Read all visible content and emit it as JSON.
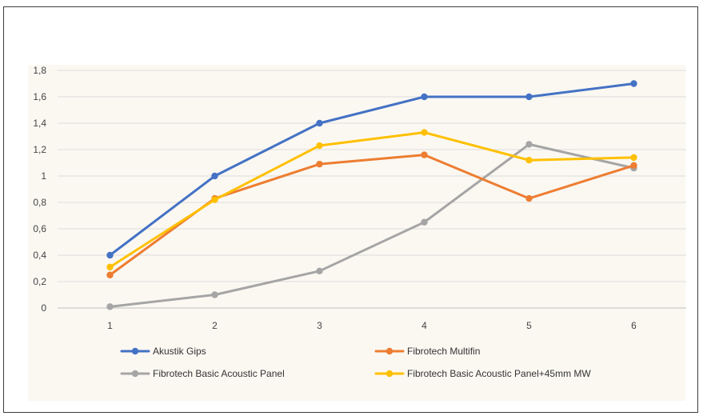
{
  "chart_data": {
    "type": "line",
    "title": "",
    "xlabel": "",
    "ylabel": "",
    "x": [
      1,
      2,
      3,
      4,
      5,
      6
    ],
    "x_tick_labels": [
      "1",
      "2",
      "3",
      "4",
      "5",
      "6"
    ],
    "ylim": [
      0,
      1.8
    ],
    "y_ticks": [
      0,
      0.2,
      0.4,
      0.6,
      0.8,
      1,
      1.2,
      1.4,
      1.6,
      1.8
    ],
    "y_tick_labels": [
      "0",
      "0,2",
      "0,4",
      "0,6",
      "0,8",
      "1",
      "1,2",
      "1,4",
      "1,6",
      "1,8"
    ],
    "grid": true,
    "legend_position": "bottom",
    "series": [
      {
        "name": "Akustik Gips",
        "color": "#4472c4",
        "values": [
          0.4,
          1.0,
          1.4,
          1.6,
          1.6,
          1.7
        ]
      },
      {
        "name": "Fibrotech Multifin",
        "color": "#ed7d31",
        "values": [
          0.25,
          0.83,
          1.09,
          1.16,
          0.83,
          1.08
        ]
      },
      {
        "name": "Fibrotech Basic Acoustic Panel",
        "color": "#a5a5a5",
        "values": [
          0.01,
          0.1,
          0.28,
          0.65,
          1.24,
          1.06
        ]
      },
      {
        "name": "Fibrotech Basic Acoustic Panel+45mm MW",
        "color": "#ffc000",
        "values": [
          0.31,
          0.82,
          1.23,
          1.33,
          1.12,
          1.14
        ]
      }
    ]
  }
}
